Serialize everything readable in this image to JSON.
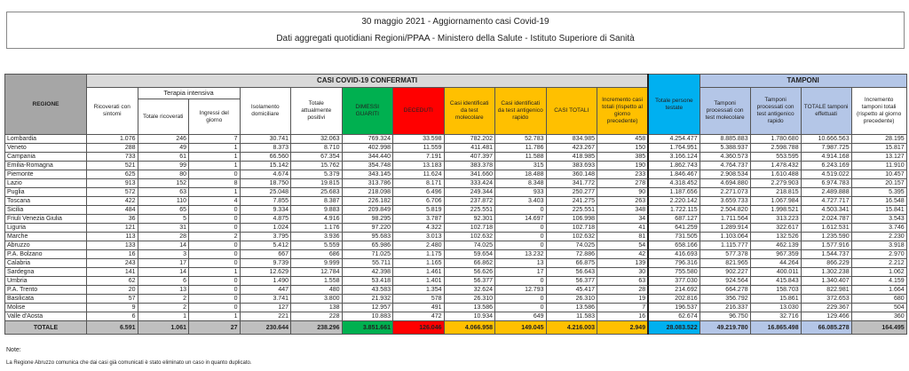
{
  "title": "30 maggio 2021 - Aggiornamento casi Covid-19",
  "subtitle": "Dati aggregati quotidiani Regioni/PPAA - Ministero della Salute - Istituto Superiore di Sanità",
  "headers": {
    "regione": "REGIONE",
    "casi": "CASI COVID-19 CONFERMATI",
    "tamponi": "TAMPONI",
    "terapia": "Terapia intensiva",
    "cols": [
      "Ricoverati con sintomi",
      "Totale ricoverati",
      "Ingressi del giorno",
      "Isolamento domiciliare",
      "Totale attualmente positivi",
      "DIMESSI GUARITI",
      "DECEDUTI",
      "Casi identificati da test molecolare",
      "Casi identificati da test antigenico rapido",
      "CASI TOTALI",
      "Incremento casi totali (rispetto al giorno precedente)",
      "Totale persone testate",
      "Tamponi processati con test molecolare",
      "Tamponi processati con test antigenico rapido",
      "TOTALE tamponi effettuati",
      "Incremento tamponi totali (rispetto al giorno precedente)"
    ]
  },
  "rows": [
    [
      "Lombardia",
      "1.076",
      "246",
      "7",
      "30.741",
      "32.063",
      "769.324",
      "33.598",
      "782.202",
      "52.783",
      "834.985",
      "458",
      "4.254.477",
      "8.885.883",
      "1.780.680",
      "10.666.563",
      "28.195"
    ],
    [
      "Veneto",
      "288",
      "49",
      "1",
      "8.373",
      "8.710",
      "402.998",
      "11.559",
      "411.481",
      "11.786",
      "423.267",
      "150",
      "1.764.951",
      "5.388.937",
      "2.598.788",
      "7.987.725",
      "15.817"
    ],
    [
      "Campania",
      "733",
      "61",
      "1",
      "66.560",
      "67.354",
      "344.440",
      "7.191",
      "407.397",
      "11.588",
      "418.985",
      "385",
      "3.166.124",
      "4.360.573",
      "553.595",
      "4.914.168",
      "13.127"
    ],
    [
      "Emilia-Romagna",
      "521",
      "99",
      "1",
      "15.142",
      "15.762",
      "354.748",
      "13.183",
      "383.378",
      "315",
      "383.693",
      "190",
      "1.862.743",
      "4.764.737",
      "1.478.432",
      "6.243.169",
      "11.910"
    ],
    [
      "Piemonte",
      "625",
      "80",
      "0",
      "4.674",
      "5.379",
      "343.145",
      "11.624",
      "341.660",
      "18.488",
      "360.148",
      "233",
      "1.846.467",
      "2.908.534",
      "1.610.488",
      "4.519.022",
      "10.457"
    ],
    [
      "Lazio",
      "913",
      "152",
      "8",
      "18.750",
      "19.815",
      "313.786",
      "8.171",
      "333.424",
      "8.348",
      "341.772",
      "278",
      "4.318.452",
      "4.694.880",
      "2.279.903",
      "6.974.783",
      "20.157"
    ],
    [
      "Puglia",
      "572",
      "63",
      "1",
      "25.048",
      "25.683",
      "218.098",
      "6.496",
      "249.344",
      "933",
      "250.277",
      "90",
      "1.187.656",
      "2.271.073",
      "218.815",
      "2.489.888",
      "5.395"
    ],
    [
      "Toscana",
      "422",
      "110",
      "4",
      "7.855",
      "8.387",
      "226.182",
      "6.706",
      "237.872",
      "3.403",
      "241.275",
      "263",
      "2.220.142",
      "3.659.733",
      "1.067.984",
      "4.727.717",
      "16.548"
    ],
    [
      "Sicilia",
      "484",
      "65",
      "0",
      "9.334",
      "9.883",
      "209.849",
      "5.819",
      "225.551",
      "0",
      "225.551",
      "348",
      "1.722.115",
      "2.504.820",
      "1.998.521",
      "4.503.341",
      "15.841"
    ],
    [
      "Friuli Venezia Giulia",
      "36",
      "5",
      "0",
      "4.875",
      "4.916",
      "98.295",
      "3.787",
      "92.301",
      "14.697",
      "106.998",
      "34",
      "687.127",
      "1.711.564",
      "313.223",
      "2.024.787",
      "3.543"
    ],
    [
      "Liguria",
      "121",
      "31",
      "0",
      "1.024",
      "1.176",
      "97.220",
      "4.322",
      "102.718",
      "0",
      "102.718",
      "41",
      "641.259",
      "1.289.914",
      "322.617",
      "1.612.531",
      "3.746"
    ],
    [
      "Marche",
      "113",
      "28",
      "2",
      "3.795",
      "3.936",
      "95.683",
      "3.013",
      "102.632",
      "0",
      "102.632",
      "81",
      "731.505",
      "1.103.064",
      "132.526",
      "1.235.590",
      "2.230"
    ],
    [
      "Abruzzo",
      "133",
      "14",
      "0",
      "5.412",
      "5.559",
      "65.986",
      "2.480",
      "74.025",
      "0",
      "74.025",
      "54",
      "658.166",
      "1.115.777",
      "462.139",
      "1.577.916",
      "3.918"
    ],
    [
      "P.A. Bolzano",
      "16",
      "3",
      "0",
      "667",
      "686",
      "71.025",
      "1.175",
      "59.654",
      "13.232",
      "72.886",
      "42",
      "416.693",
      "577.378",
      "967.359",
      "1.544.737",
      "2.970"
    ],
    [
      "Calabria",
      "243",
      "17",
      "0",
      "9.739",
      "9.999",
      "55.711",
      "1.165",
      "66.862",
      "13",
      "66.875",
      "139",
      "796.316",
      "821.965",
      "44.264",
      "866.229",
      "2.212"
    ],
    [
      "Sardegna",
      "141",
      "14",
      "1",
      "12.629",
      "12.784",
      "42.398",
      "1.461",
      "56.626",
      "17",
      "56.643",
      "30",
      "755.580",
      "902.227",
      "400.011",
      "1.302.238",
      "1.062"
    ],
    [
      "Umbria",
      "62",
      "6",
      "0",
      "1.490",
      "1.558",
      "53.418",
      "1.401",
      "56.377",
      "0",
      "56.377",
      "63",
      "377.030",
      "924.564",
      "415.843",
      "1.340.407",
      "4.159"
    ],
    [
      "P.A. Trento",
      "20",
      "13",
      "0",
      "447",
      "480",
      "43.583",
      "1.354",
      "32.624",
      "12.793",
      "45.417",
      "28",
      "214.692",
      "664.278",
      "158.703",
      "822.981",
      "1.664"
    ],
    [
      "Basilicata",
      "57",
      "2",
      "0",
      "3.741",
      "3.800",
      "21.932",
      "578",
      "26.310",
      "0",
      "26.310",
      "19",
      "202.816",
      "356.792",
      "15.861",
      "372.653",
      "680"
    ],
    [
      "Molise",
      "9",
      "2",
      "0",
      "127",
      "138",
      "12.957",
      "491",
      "13.586",
      "0",
      "13.586",
      "7",
      "196.537",
      "216.337",
      "13.030",
      "229.367",
      "504"
    ],
    [
      "Valle d'Aosta",
      "6",
      "1",
      "1",
      "221",
      "228",
      "10.883",
      "472",
      "10.934",
      "649",
      "11.583",
      "16",
      "62.674",
      "96.750",
      "32.716",
      "129.466",
      "360"
    ]
  ],
  "total": [
    "TOTALE",
    "6.591",
    "1.061",
    "27",
    "230.644",
    "238.296",
    "3.851.661",
    "126.046",
    "4.066.958",
    "149.045",
    "4.216.003",
    "2.949",
    "28.083.522",
    "49.219.780",
    "16.865.498",
    "66.085.278",
    "164.495"
  ],
  "note_label": "Note:",
  "note_text": "La Regione Abruzzo comunica che dai casi già comunicati è stato eliminato un caso in quanto duplicato."
}
